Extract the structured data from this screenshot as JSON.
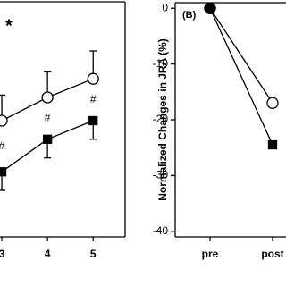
{
  "chart_data": [
    {
      "type": "line",
      "significance": "*",
      "annotations": [
        "#",
        "#",
        "#"
      ],
      "x": [
        3,
        4,
        5
      ],
      "xlim": [
        2.96,
        5.7
      ],
      "xticks": [
        3,
        4,
        5
      ],
      "ylim": [
        0,
        100
      ],
      "series": [
        {
          "color": "#000000",
          "marker": "circle",
          "fill": "#ffffff",
          "values": [
            50,
            60,
            68
          ],
          "errors": [
            11,
            11,
            12
          ],
          "error_dir": "up"
        },
        {
          "color": "#000000",
          "marker": "square",
          "fill": "#000000",
          "values": [
            28,
            42,
            50
          ],
          "errors": [
            8,
            8,
            8
          ],
          "error_dir": "down"
        }
      ]
    },
    {
      "type": "line",
      "panel_label": "(B)",
      "y_label": "Normalized Changes in JRA (%)",
      "categories": [
        "pre",
        "post"
      ],
      "ylim": [
        -41,
        1
      ],
      "yticks": [
        0,
        -10,
        -20,
        -30,
        -40
      ],
      "series": [
        {
          "color": "#000000",
          "markers": [
            "circle",
            "circle"
          ],
          "fills": [
            "#000000",
            "#ffffff"
          ],
          "values": [
            0,
            -17
          ]
        },
        {
          "color": "#000000",
          "markers": [
            "circle",
            "square"
          ],
          "fills": [
            "#000000",
            "#000000"
          ],
          "values": [
            0,
            -24.5
          ]
        }
      ]
    }
  ]
}
